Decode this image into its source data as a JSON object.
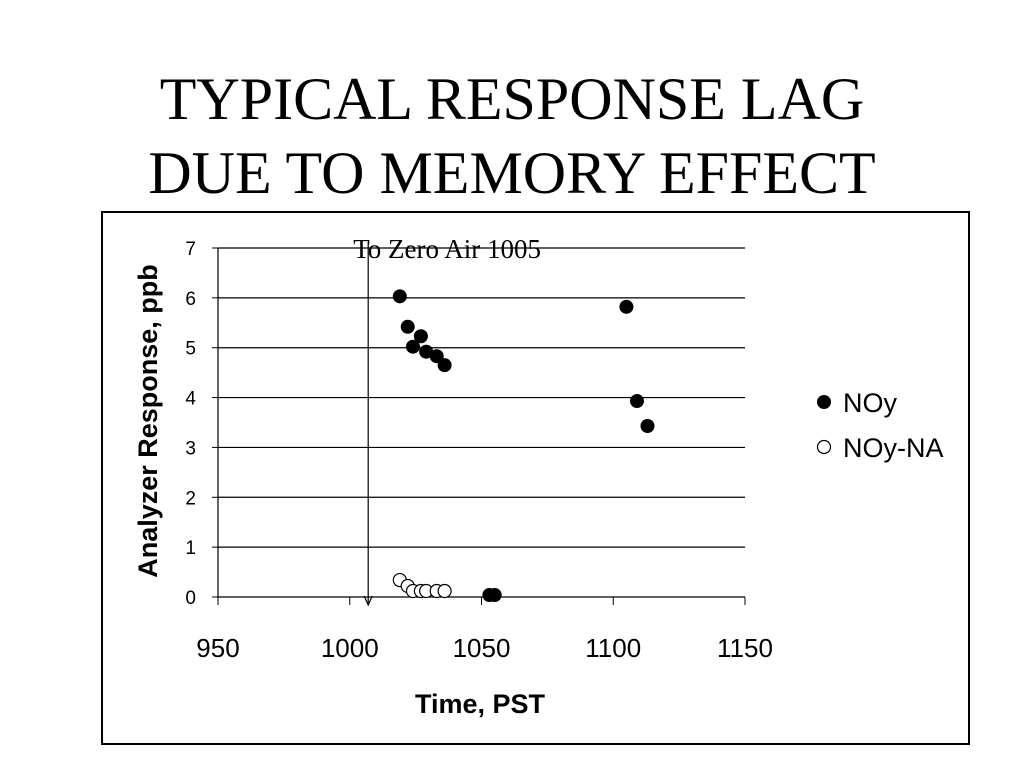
{
  "slide": {
    "title_line1": "TYPICAL RESPONSE LAG",
    "title_line2": "DUE TO MEMORY EFFECT"
  },
  "chart_data": {
    "type": "scatter",
    "title": "",
    "xlabel": "Time, PST",
    "ylabel": "Analyzer Response, ppb",
    "xlim": [
      950,
      1150
    ],
    "ylim": [
      0,
      7
    ],
    "xticks": [
      950,
      1000,
      1050,
      1100,
      1150
    ],
    "yticks": [
      0,
      1,
      2,
      3,
      4,
      5,
      6,
      7
    ],
    "grid": "horizontal",
    "legend_position": "right",
    "annotation": {
      "text": "To Zero Air 1005",
      "x": 1007,
      "y_from": 7,
      "y_to": 0
    },
    "series": [
      {
        "name": "NOy",
        "marker": "filled-circle",
        "color": "#000000",
        "x": [
          1019,
          1022,
          1024,
          1027,
          1029,
          1033,
          1036,
          1053,
          1055,
          1105,
          1109,
          1113
        ],
        "y": [
          6.03,
          5.42,
          5.02,
          5.23,
          4.92,
          4.83,
          4.65,
          0.04,
          0.04,
          5.82,
          3.93,
          3.43
        ]
      },
      {
        "name": "NOy-NA",
        "marker": "open-circle",
        "color": "#000000",
        "x": [
          1019,
          1022,
          1024,
          1027,
          1029,
          1033,
          1036
        ],
        "y": [
          0.34,
          0.22,
          0.12,
          0.12,
          0.12,
          0.12,
          0.12
        ]
      }
    ]
  }
}
